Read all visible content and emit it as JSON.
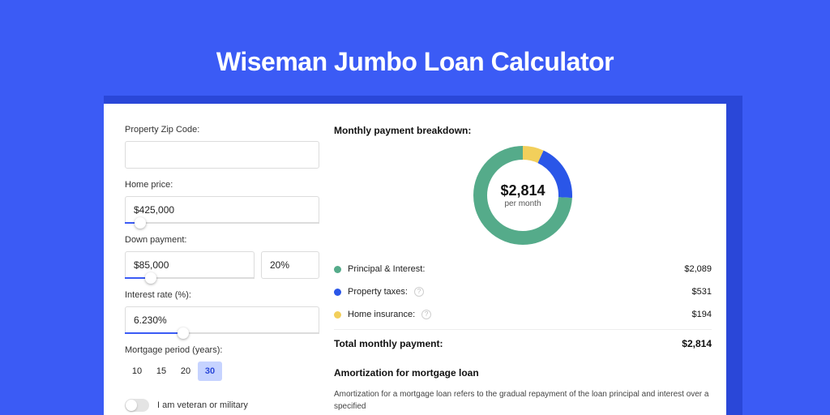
{
  "page": {
    "title": "Wiseman Jumbo Loan Calculator",
    "bg_color": "#3b5bf5",
    "panel_shadow_color": "#2a47d8"
  },
  "form": {
    "zip": {
      "label": "Property Zip Code:",
      "value": ""
    },
    "home_price": {
      "label": "Home price:",
      "value": "$425,000",
      "slider_pct": 8
    },
    "down_payment": {
      "label": "Down payment:",
      "amount": "$85,000",
      "percent": "20%",
      "slider_pct": 20
    },
    "interest_rate": {
      "label": "Interest rate (%):",
      "value": "6.230%",
      "slider_pct": 30
    },
    "mortgage_period": {
      "label": "Mortgage period (years):",
      "options": [
        "10",
        "15",
        "20",
        "30"
      ],
      "active_index": 3
    },
    "veteran": {
      "label": "I am veteran or military",
      "checked": false
    }
  },
  "breakdown": {
    "title": "Monthly payment breakdown:",
    "total_amount": "$2,814",
    "total_sub": "per month",
    "donut": {
      "size": 122,
      "stroke": 17,
      "segments": [
        {
          "key": "pi",
          "label": "Principal & Interest:",
          "value": "$2,089",
          "color": "#55ab8a",
          "pct": 74.2,
          "has_info": false
        },
        {
          "key": "tax",
          "label": "Property taxes:",
          "value": "$531",
          "color": "#2a56e8",
          "pct": 18.9,
          "has_info": true
        },
        {
          "key": "ins",
          "label": "Home insurance:",
          "value": "$194",
          "color": "#f2cf5b",
          "pct": 6.9,
          "has_info": true
        }
      ]
    },
    "total_row": {
      "label": "Total monthly payment:",
      "value": "$2,814"
    }
  },
  "amortization": {
    "title": "Amortization for mortgage loan",
    "body": "Amortization for a mortgage loan refers to the gradual repayment of the loan principal and interest over a specified"
  }
}
